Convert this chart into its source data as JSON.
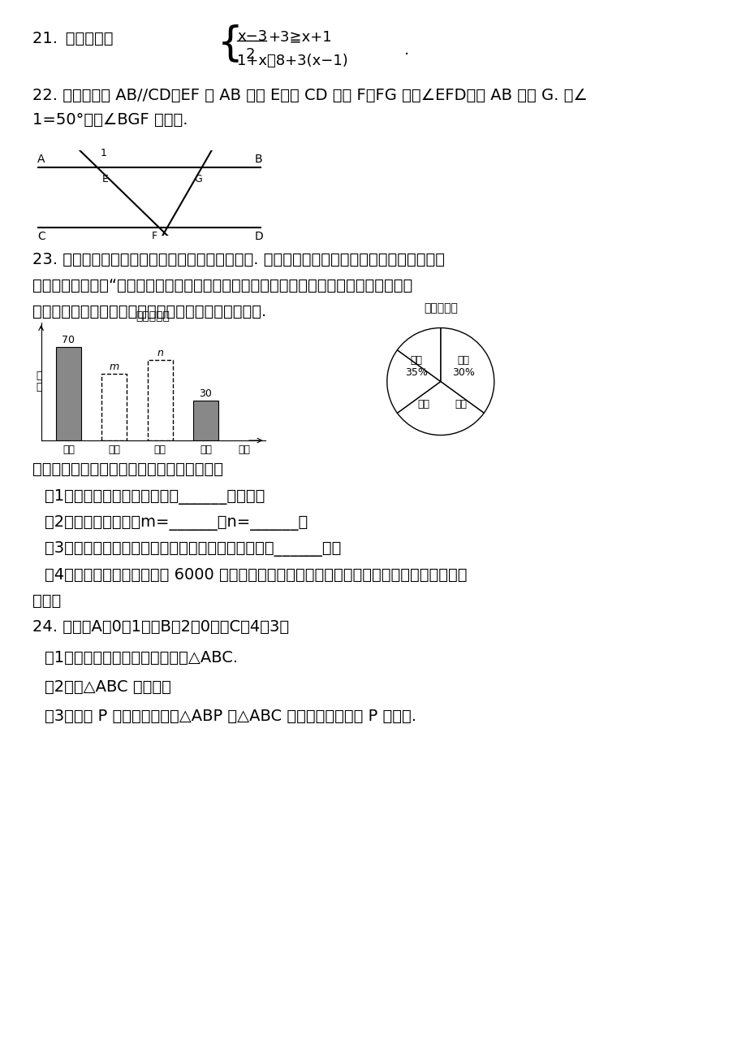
{
  "bg_color": "#ffffff",
  "q21_label": "21. 解不等式组",
  "q22_text1": "22. 如图，已知 AB∕∕CD，EF 交 AB 于点 E，交 CD 于点 F，FG 平分∠EFD，交 AB 于点 G. 若∠",
  "q22_text2": "1=50°，求∠BGF 的度数.",
  "q23_text1": "23. 在读书月活动中，学校准备购买一批课外读物. 为使课外读物满足同学们的需求，学校就我",
  "q23_text2": "最喜爱的课外读物“从文学、艺术、科普和其他四个类别进行了抄样调查（每位同学只选一",
  "q23_text3": "类），如图是根据调查结果绘制的两幅不完整的统计图.",
  "bar_title": "条形统计图",
  "pie_title": "扇形统计图",
  "bar_cats": [
    "文学",
    "艺术",
    "科普",
    "其他",
    "类别"
  ],
  "bar_ylabel": "人\n数",
  "pie_label_wenxue": "文学\n35%",
  "pie_label_kepu": "科普\n30%",
  "pie_label_yishu": "艺术",
  "pie_label_qita": "其他",
  "q23_q0": "请你根据统计图提供的信息，解答下列问题：",
  "q23_q1": "（1）本次调查中，一共调查了______名同学；",
  "q23_q2": "（2）条形统计图中，m=______，n=______；",
  "q23_q3": "（3）扇形统计图中，艺术类读物所在扇形的圆心角是______度；",
  "q23_q4": "（4）学校计划购买课外读物 6000 册，请根据样本数据，估计学校购买其他类读物多少册比较",
  "q23_q4b": "合理？",
  "q24_text": "24. 已知：A（0，1），B（2，0），C（4，3）",
  "q24_q1": "（1）在坐标系中描出各点，画出△ABC.",
  "q24_q2": "（2）求△ABC 的面积；",
  "q24_q3": "（3）设点 P 在坐标轴上，且△ABP 与△ABC 的面积相等，求点 P 的坐标."
}
